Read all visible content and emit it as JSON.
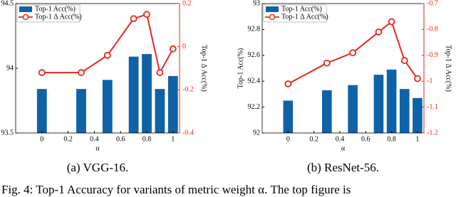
{
  "figure_caption": "Fig. 4: Top-1 Accuracy for variants of metric weight α. The top figure is",
  "chart_data": [
    {
      "type": "bar",
      "caption": "(a) VGG-16.",
      "xlabel": "α",
      "ylabel": "Top-1 Acc(%)",
      "y2label": "Top-1 Δ Acc(%)",
      "x": [
        0,
        0.3,
        0.5,
        0.7,
        0.8,
        0.9,
        1
      ],
      "xlim": [
        -0.2,
        1.05
      ],
      "xticks": [
        0,
        0.2,
        0.4,
        0.6,
        0.8,
        1
      ],
      "ylim": [
        93.5,
        94.5
      ],
      "yticks": [
        93.5,
        94,
        94.5
      ],
      "y2lim": [
        -0.4,
        0.2
      ],
      "y2ticks": [
        -0.4,
        -0.2,
        0,
        0.2
      ],
      "legend": "upper left",
      "series": [
        {
          "name": "Top-1 Acc(%)",
          "type": "bar",
          "color": "#0f62a8",
          "values": [
            93.84,
            93.84,
            93.91,
            94.09,
            94.11,
            93.84,
            93.94
          ]
        },
        {
          "name": "Top-1 Δ Acc(%)",
          "type": "line",
          "axis": "y2",
          "color": "#e8261e",
          "values": [
            -0.12,
            -0.12,
            -0.04,
            0.13,
            0.15,
            -0.12,
            -0.01
          ]
        }
      ]
    },
    {
      "type": "bar",
      "caption": "(b) ResNet-56.",
      "xlabel": "α",
      "ylabel": "Top-1 Acc(%)",
      "y2label": "Top-1 Δ Acc(%)",
      "x": [
        0,
        0.3,
        0.5,
        0.7,
        0.8,
        0.9,
        1
      ],
      "xlim": [
        -0.2,
        1.05
      ],
      "xticks": [
        0,
        0.2,
        0.4,
        0.6,
        0.8,
        1
      ],
      "ylim": [
        92,
        93
      ],
      "yticks": [
        92,
        92.2,
        92.4,
        92.6,
        92.8,
        93
      ],
      "y2lim": [
        -1.2,
        -0.7
      ],
      "y2ticks": [
        -1.2,
        -1.1,
        -1,
        -0.9,
        -0.8,
        -0.7
      ],
      "legend": "upper left",
      "series": [
        {
          "name": "Top-1 Acc(%)",
          "type": "bar",
          "color": "#0f62a8",
          "values": [
            92.25,
            92.33,
            92.37,
            92.45,
            92.49,
            92.34,
            92.27
          ]
        },
        {
          "name": "Top-1 Δ Acc(%)",
          "type": "line",
          "axis": "y2",
          "color": "#e8261e",
          "values": [
            -1.01,
            -0.93,
            -0.89,
            -0.81,
            -0.77,
            -0.92,
            -0.99
          ]
        }
      ]
    }
  ]
}
